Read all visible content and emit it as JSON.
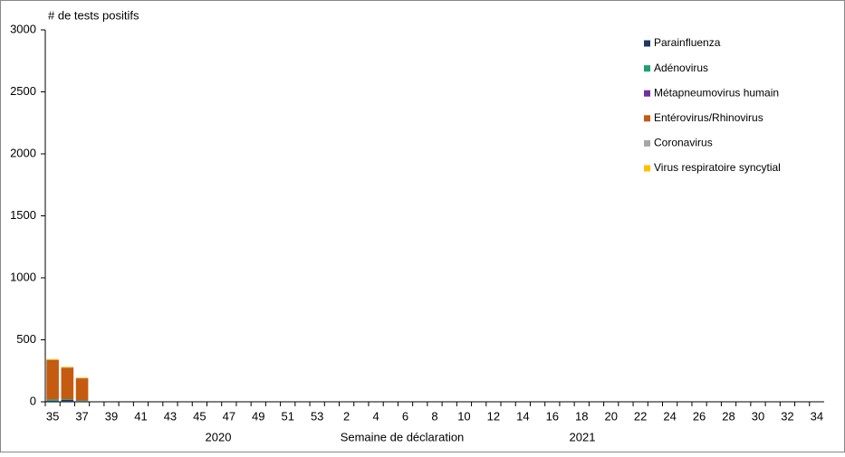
{
  "chart_data": {
    "type": "stacked_bar",
    "y_title": "# de tests positifs",
    "x_title": "Semaine de déclaration",
    "year_labels": [
      "2020",
      "2021"
    ],
    "categories": [
      "35",
      null,
      "37",
      null,
      "39",
      null,
      "41",
      null,
      "43",
      null,
      "45",
      null,
      "47",
      null,
      "49",
      null,
      "51",
      null,
      "53",
      null,
      "2",
      null,
      "4",
      null,
      "6",
      null,
      "8",
      null,
      "10",
      null,
      "12",
      null,
      "14",
      null,
      "16",
      null,
      "18",
      null,
      "20",
      null,
      "22",
      null,
      "24",
      null,
      "26",
      null,
      "28",
      null,
      "30",
      null,
      "32",
      null,
      "34"
    ],
    "ylim": [
      0,
      3000
    ],
    "yticks": [
      0,
      500,
      1000,
      1500,
      2000,
      2500,
      3000
    ],
    "series": [
      {
        "name": "Parainfluenza",
        "color": "#1f3864",
        "values": [
          8,
          15,
          5,
          null,
          null,
          null,
          null,
          null,
          null,
          null,
          null,
          null,
          null,
          null,
          null,
          null,
          null,
          null,
          null,
          null,
          null,
          null,
          null,
          null,
          null,
          null,
          null,
          null,
          null,
          null,
          null,
          null,
          null,
          null,
          null,
          null,
          null,
          null,
          null,
          null,
          null,
          null,
          null,
          null,
          null,
          null,
          null,
          null,
          null,
          null,
          null,
          null,
          null
        ]
      },
      {
        "name": "Adénovirus",
        "color": "#1aa36f",
        "values": [
          10,
          6,
          5,
          null,
          null,
          null,
          null,
          null,
          null,
          null,
          null,
          null,
          null,
          null,
          null,
          null,
          null,
          null,
          null,
          null,
          null,
          null,
          null,
          null,
          null,
          null,
          null,
          null,
          null,
          null,
          null,
          null,
          null,
          null,
          null,
          null,
          null,
          null,
          null,
          null,
          null,
          null,
          null,
          null,
          null,
          null,
          null,
          null,
          null,
          null,
          null,
          null,
          null
        ]
      },
      {
        "name": "Métapneumovirus humain",
        "color": "#7030a0",
        "values": [
          1,
          1,
          1,
          null,
          null,
          null,
          null,
          null,
          null,
          null,
          null,
          null,
          null,
          null,
          null,
          null,
          null,
          null,
          null,
          null,
          null,
          null,
          null,
          null,
          null,
          null,
          null,
          null,
          null,
          null,
          null,
          null,
          null,
          null,
          null,
          null,
          null,
          null,
          null,
          null,
          null,
          null,
          null,
          null,
          null,
          null,
          null,
          null,
          null,
          null,
          null,
          null,
          null
        ]
      },
      {
        "name": "Entérovirus/Rhinovirus",
        "color": "#c55a11",
        "values": [
          318,
          253,
          178,
          null,
          null,
          null,
          null,
          null,
          null,
          null,
          null,
          null,
          null,
          null,
          null,
          null,
          null,
          null,
          null,
          null,
          null,
          null,
          null,
          null,
          null,
          null,
          null,
          null,
          null,
          null,
          null,
          null,
          null,
          null,
          null,
          null,
          null,
          null,
          null,
          null,
          null,
          null,
          null,
          null,
          null,
          null,
          null,
          null,
          null,
          null,
          null,
          null,
          null
        ]
      },
      {
        "name": "Coronavirus",
        "color": "#a6a6a6",
        "values": [
          2,
          2,
          2,
          null,
          null,
          null,
          null,
          null,
          null,
          null,
          null,
          null,
          null,
          null,
          null,
          null,
          null,
          null,
          null,
          null,
          null,
          null,
          null,
          null,
          null,
          null,
          null,
          null,
          null,
          null,
          null,
          null,
          null,
          null,
          null,
          null,
          null,
          null,
          null,
          null,
          null,
          null,
          null,
          null,
          null,
          null,
          null,
          null,
          null,
          null,
          null,
          null,
          null
        ]
      },
      {
        "name": "Virus respiratoire syncytial",
        "color": "#ffc000",
        "values": [
          6,
          5,
          5,
          null,
          null,
          null,
          null,
          null,
          null,
          null,
          null,
          null,
          null,
          null,
          null,
          null,
          null,
          null,
          null,
          null,
          null,
          null,
          null,
          null,
          null,
          null,
          null,
          null,
          null,
          null,
          null,
          null,
          null,
          null,
          null,
          null,
          null,
          null,
          null,
          null,
          null,
          null,
          null,
          null,
          null,
          null,
          null,
          null,
          null,
          null,
          null,
          null,
          null
        ]
      }
    ]
  }
}
